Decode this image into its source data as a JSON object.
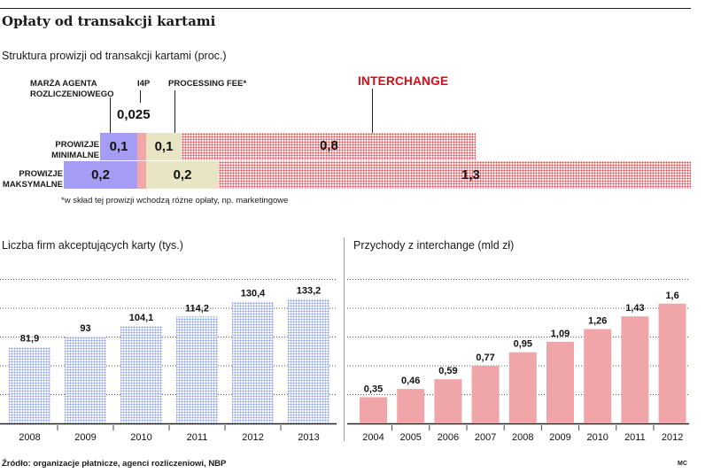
{
  "header": {
    "title": "Opłaty od transakcji kartami"
  },
  "structure": {
    "subtitle": "Struktura prowizji od transakcji kartami (proc.)",
    "labels": {
      "marza": "MARŻA AGENTA ROZLICZENIOWEGO",
      "i4p": "I4P",
      "processing": "PROCESSING FEE*",
      "interchange": "INTERCHANGE",
      "min": "PROWIZJE MINIMALNE",
      "max": "PROWIZJE MAKSYMALNE"
    },
    "i4p_value": "0,025",
    "minimal": {
      "marza": "0,1",
      "processing": "0,1",
      "interchange": "0,8"
    },
    "maximal": {
      "marza": "0,2",
      "processing": "0,2",
      "interchange": "1,3"
    },
    "footnote": "*w skład tej prowizji wchodzą różne opłaty, np. marketingowe",
    "colors": {
      "marza": "#a59cf3",
      "i4p": "#f2a7a6",
      "processing": "#e8e5c5",
      "interchange": "#e53a3f"
    }
  },
  "chart_data": [
    {
      "type": "bar",
      "title": "Liczba firm akceptujących karty (tys.)",
      "categories": [
        "2008",
        "2009",
        "2010",
        "2011",
        "2012",
        "2013"
      ],
      "values": [
        81.9,
        93,
        104.1,
        114.2,
        130.4,
        133.2
      ],
      "labels": [
        "81,9",
        "93",
        "104,1",
        "114,2",
        "130,4",
        "133,2"
      ],
      "ylim": [
        0,
        160
      ],
      "grid": true,
      "color": "#8ea3ea"
    },
    {
      "type": "bar",
      "title": "Przychody z interchange (mld zł)",
      "categories": [
        "2004",
        "2005",
        "2006",
        "2007",
        "2008",
        "2009",
        "2010",
        "2011",
        "2012"
      ],
      "values": [
        0.35,
        0.46,
        0.59,
        0.77,
        0.95,
        1.09,
        1.26,
        1.43,
        1.6
      ],
      "labels": [
        "0,35",
        "0,46",
        "0,59",
        "0,77",
        "0,95",
        "1,09",
        "1,26",
        "1,43",
        "1,6"
      ],
      "ylim": [
        0,
        2
      ],
      "grid": true,
      "color": "#f0a6a9"
    }
  ],
  "footer": {
    "source": "Źródło: organizacje płatnicze, agenci rozliczeniowi, NBP",
    "credit": "MC"
  }
}
